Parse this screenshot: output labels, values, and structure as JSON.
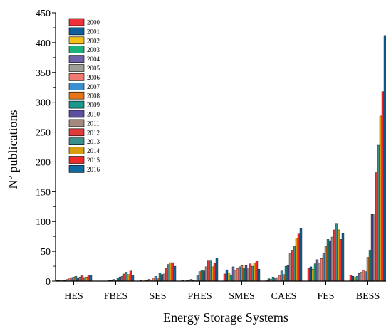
{
  "chart_data": {
    "type": "bar",
    "title": "",
    "xlabel": "Energy Storage Systems",
    "ylabel": "Nº publications",
    "ylim": [
      0,
      450
    ],
    "yticks": [
      0,
      50,
      100,
      150,
      200,
      250,
      300,
      350,
      400,
      450
    ],
    "grid": false,
    "legend_position": "top-left",
    "categories": [
      "HES",
      "FBES",
      "SES",
      "PHES",
      "SMES",
      "CAES",
      "FES",
      "BESS"
    ],
    "series": [
      {
        "name": "2000",
        "color": "#f0313a",
        "values": [
          1,
          0,
          1,
          1,
          12,
          2,
          21,
          10
        ]
      },
      {
        "name": "2001",
        "color": "#0f5f9a",
        "values": [
          1,
          0,
          0,
          0,
          19,
          4,
          24,
          8
        ]
      },
      {
        "name": "2002",
        "color": "#f3c21a",
        "values": [
          2,
          0,
          2,
          1,
          14,
          3,
          20,
          6
        ]
      },
      {
        "name": "2003",
        "color": "#1ab27a",
        "values": [
          2,
          0,
          1,
          2,
          10,
          7,
          29,
          8
        ]
      },
      {
        "name": "2004",
        "color": "#6c63a8",
        "values": [
          1,
          0,
          3,
          3,
          24,
          5,
          36,
          13
        ]
      },
      {
        "name": "2005",
        "color": "#9e9e96",
        "values": [
          3,
          1,
          2,
          1,
          18,
          6,
          30,
          15
        ]
      },
      {
        "name": "2006",
        "color": "#f27a72",
        "values": [
          5,
          1,
          5,
          2,
          21,
          9,
          38,
          18
        ]
      },
      {
        "name": "2007",
        "color": "#3a8fd0",
        "values": [
          6,
          3,
          8,
          10,
          24,
          17,
          46,
          16
        ]
      },
      {
        "name": "2008",
        "color": "#e67516",
        "values": [
          7,
          2,
          5,
          16,
          26,
          11,
          58,
          40
        ]
      },
      {
        "name": "2009",
        "color": "#19988e",
        "values": [
          8,
          5,
          14,
          18,
          22,
          25,
          70,
          52
        ]
      },
      {
        "name": "2010",
        "color": "#5a4fa1",
        "values": [
          5,
          7,
          11,
          17,
          26,
          26,
          68,
          112
        ]
      },
      {
        "name": "2011",
        "color": "#a48a7e",
        "values": [
          7,
          8,
          12,
          24,
          22,
          46,
          74,
          113
        ]
      },
      {
        "name": "2012",
        "color": "#e03a3a",
        "values": [
          9,
          12,
          22,
          35,
          29,
          52,
          86,
          182
        ]
      },
      {
        "name": "2013",
        "color": "#3a8f8a",
        "values": [
          6,
          15,
          28,
          35,
          25,
          58,
          97,
          228
        ]
      },
      {
        "name": "2014",
        "color": "#d89c0d",
        "values": [
          7,
          11,
          31,
          24,
          30,
          72,
          86,
          277
        ]
      },
      {
        "name": "2015",
        "color": "#ee2b2b",
        "values": [
          9,
          17,
          31,
          30,
          34,
          79,
          70,
          318
        ]
      },
      {
        "name": "2016",
        "color": "#0e6aa0",
        "values": [
          10,
          10,
          25,
          39,
          20,
          88,
          80,
          412
        ]
      }
    ]
  }
}
